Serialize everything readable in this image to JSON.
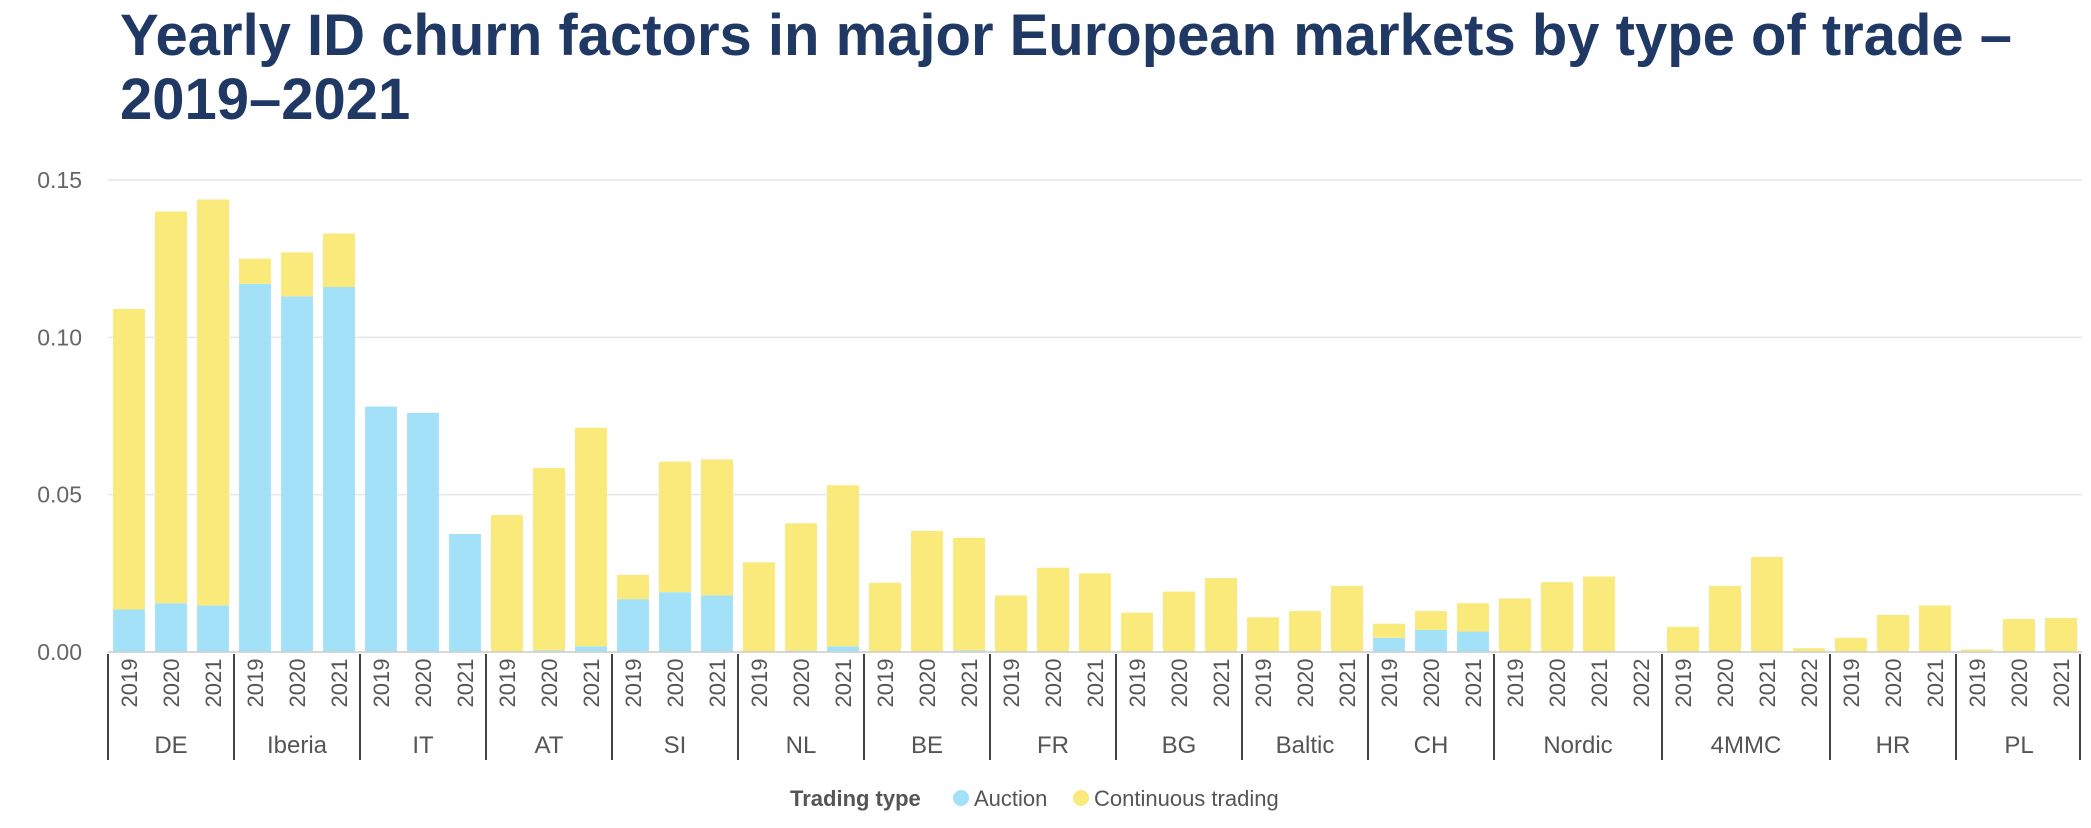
{
  "chart_data": {
    "type": "bar",
    "stacked": true,
    "title": "Yearly ID churn factors in major European markets by type of trade – 2019–2021",
    "xlabel": "",
    "ylabel": "",
    "ylim": [
      0,
      0.15
    ],
    "yticks": [
      "0.00",
      "0.05",
      "0.10",
      "0.15"
    ],
    "grid": true,
    "legend": {
      "title": "Trading type",
      "placement": "bottom-center",
      "entries": [
        "Auction",
        "Continuous trading"
      ]
    },
    "colors": {
      "Auction": "#a3e1f9",
      "Continuous trading": "#f9ea7b"
    },
    "groups": [
      {
        "name": "DE",
        "years": [
          "2019",
          "2020",
          "2021"
        ]
      },
      {
        "name": "Iberia",
        "years": [
          "2019",
          "2020",
          "2021"
        ]
      },
      {
        "name": "IT",
        "years": [
          "2019",
          "2020",
          "2021"
        ]
      },
      {
        "name": "AT",
        "years": [
          "2019",
          "2020",
          "2021"
        ]
      },
      {
        "name": "SI",
        "years": [
          "2019",
          "2020",
          "2021"
        ]
      },
      {
        "name": "NL",
        "years": [
          "2019",
          "2020",
          "2021"
        ]
      },
      {
        "name": "BE",
        "years": [
          "2019",
          "2020",
          "2021"
        ]
      },
      {
        "name": "FR",
        "years": [
          "2019",
          "2020",
          "2021"
        ]
      },
      {
        "name": "BG",
        "years": [
          "2019",
          "2020",
          "2021"
        ]
      },
      {
        "name": "Baltic",
        "years": [
          "2019",
          "2020",
          "2021"
        ]
      },
      {
        "name": "CH",
        "years": [
          "2019",
          "2020",
          "2021"
        ]
      },
      {
        "name": "Nordic",
        "years": [
          "2019",
          "2020",
          "2021",
          "2022"
        ]
      },
      {
        "name": "4MMC",
        "years": [
          "2019",
          "2020",
          "2021",
          "2022"
        ]
      },
      {
        "name": "HR",
        "years": [
          "2019",
          "2020",
          "2021"
        ]
      },
      {
        "name": "PL",
        "years": [
          "2019",
          "2020",
          "2021"
        ]
      }
    ],
    "series": [
      {
        "name": "Auction",
        "values": [
          0.0135,
          0.0155,
          0.0148,
          0.117,
          0.113,
          0.116,
          0.078,
          0.076,
          0.0375,
          0,
          0.0005,
          0.0018,
          0.0168,
          0.019,
          0.018,
          0,
          0.0004,
          0.0018,
          0,
          0,
          0.0005,
          0,
          0,
          0,
          0,
          0,
          0,
          0,
          0,
          0,
          0.0045,
          0.007,
          0.0065,
          0,
          0,
          0,
          0,
          0,
          0,
          0,
          0,
          0,
          0,
          0,
          0,
          0,
          0
        ]
      },
      {
        "name": "Continuous trading",
        "values": [
          0.0955,
          0.1245,
          0.129,
          0.008,
          0.014,
          0.017,
          0,
          0,
          0,
          0.0435,
          0.058,
          0.0695,
          0.0077,
          0.0415,
          0.0432,
          0.0285,
          0.0405,
          0.0512,
          0.022,
          0.0385,
          0.0358,
          0.018,
          0.0268,
          0.025,
          0.0125,
          0.0192,
          0.0235,
          0.011,
          0.013,
          0.021,
          0.0045,
          0.006,
          0.009,
          0.017,
          0.0222,
          0.024,
          0,
          0.008,
          0.021,
          0.0302,
          0.0012,
          0.0045,
          0.0118,
          0.0148,
          0.0008,
          0.0105,
          0.0108
        ]
      }
    ]
  }
}
